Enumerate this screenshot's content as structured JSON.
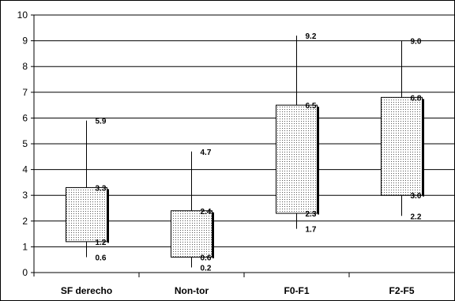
{
  "chart_data": {
    "type": "box",
    "categories": [
      "SF derecho",
      "Non-tor",
      "F0-F1",
      "F2-F5"
    ],
    "series": [
      {
        "min": 0.6,
        "q1": 1.2,
        "q3": 3.3,
        "max": 5.9,
        "labels": [
          "5.9",
          "3.3",
          "1.2",
          "0.6"
        ]
      },
      {
        "min": 0.2,
        "q1": 0.6,
        "q3": 2.4,
        "max": 4.7,
        "labels": [
          "4.7",
          "2.4",
          "0.6",
          "0.2"
        ]
      },
      {
        "min": 1.7,
        "q1": 2.3,
        "q3": 6.5,
        "max": 9.2,
        "labels": [
          "9.2",
          "6.5",
          "2.3",
          "1.7"
        ]
      },
      {
        "min": 2.2,
        "q1": 3.0,
        "q3": 6.8,
        "max": 9.0,
        "labels": [
          "9.0",
          "6.8",
          "3.0",
          "2.2"
        ]
      }
    ],
    "ylim": [
      0,
      10
    ],
    "yticks": [
      "0",
      "1",
      "2",
      "3",
      "4",
      "5",
      "6",
      "7",
      "8",
      "9",
      "10"
    ],
    "grid": true,
    "box_fill": "dotted"
  }
}
